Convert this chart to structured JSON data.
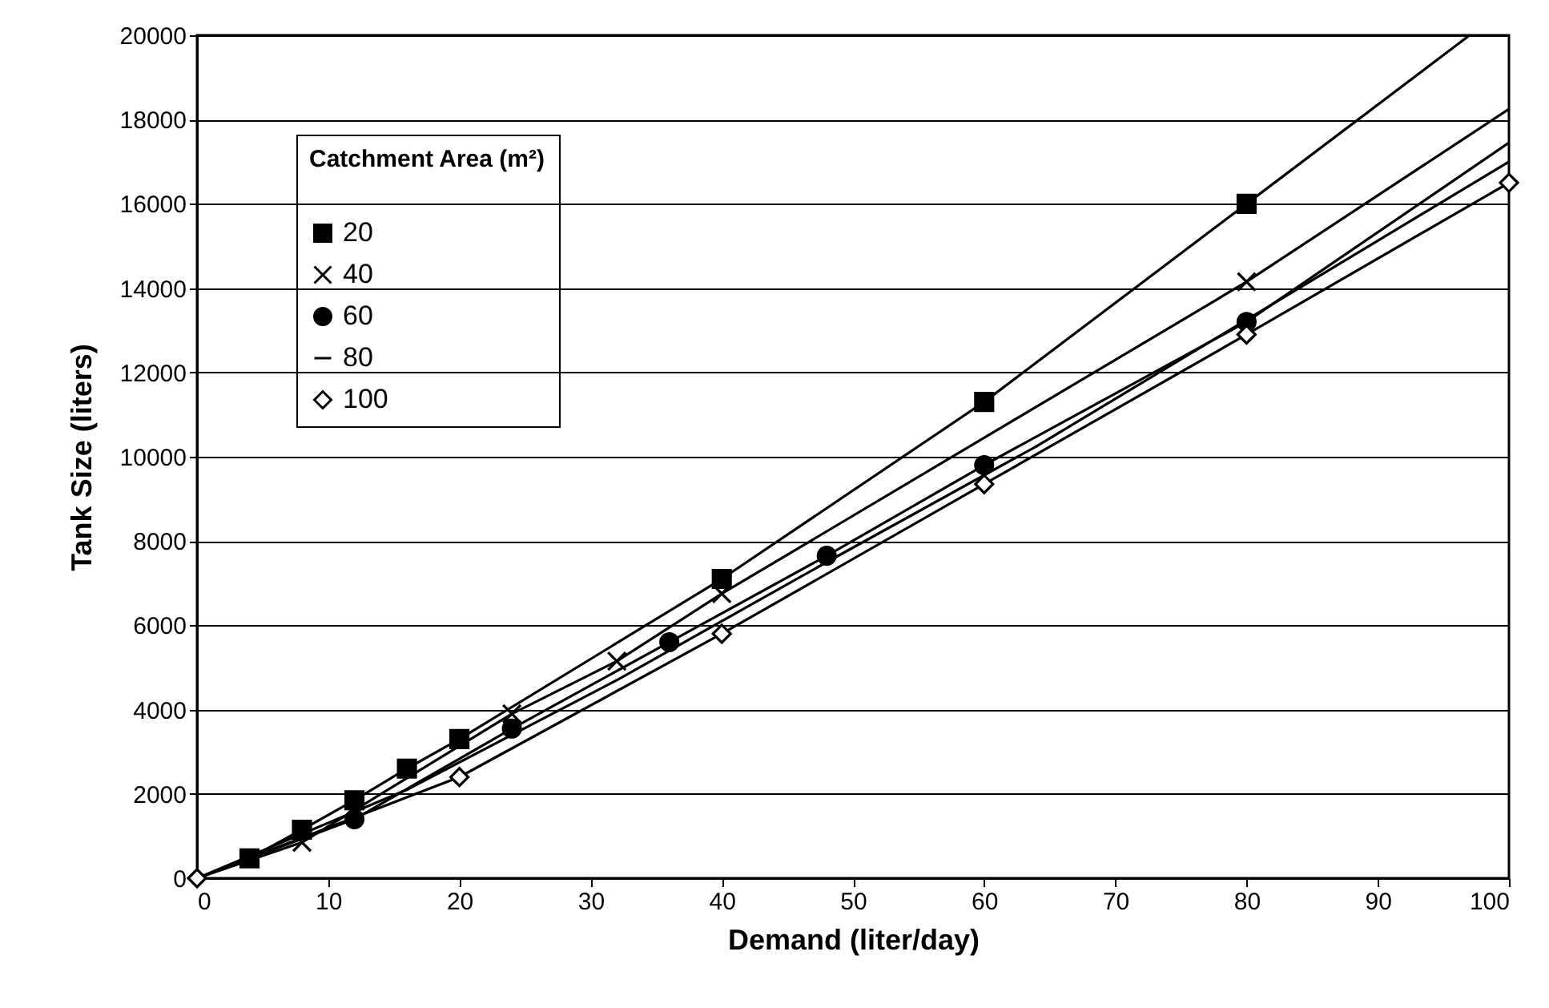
{
  "chart_data": {
    "type": "line",
    "xlabel": "Demand (liter/day)",
    "ylabel": "Tank Size (liters)",
    "legend_title": "Catchment Area (m²)",
    "xlim": [
      0,
      100
    ],
    "xticks": [
      0,
      10,
      20,
      30,
      40,
      50,
      60,
      70,
      80,
      90,
      100
    ],
    "ylim": [
      0,
      20000
    ],
    "yticks": [
      0,
      2000,
      4000,
      6000,
      8000,
      10000,
      12000,
      14000,
      16000,
      18000,
      20000
    ],
    "grid": "y",
    "legend": "top left",
    "series": [
      {
        "name": "20",
        "color": "#000000",
        "marker": "square",
        "x": [
          4,
          8,
          12,
          16,
          20,
          40,
          60,
          80
        ],
        "values": [
          470,
          1150,
          1850,
          2600,
          3300,
          7100,
          11300,
          16000
        ]
      },
      {
        "name": "40",
        "color": "#000000",
        "marker": "cross",
        "x": [
          8,
          24,
          32,
          40,
          80
        ],
        "values": [
          850,
          3900,
          5150,
          6750,
          14150
        ]
      },
      {
        "name": "60",
        "color": "#000000",
        "marker": "circle",
        "x": [
          12,
          24,
          36,
          48,
          60,
          80
        ],
        "values": [
          1400,
          3550,
          5600,
          7650,
          9800,
          13200
        ]
      },
      {
        "name": "80",
        "color": "#000000",
        "marker": "none",
        "x": [
          16,
          32,
          48,
          64
        ],
        "values": [
          2100,
          4700,
          7500,
          10250
        ]
      },
      {
        "name": "100",
        "color": "#000000",
        "marker": "diamond",
        "x": [
          0,
          20,
          40,
          60,
          80,
          100
        ],
        "values": [
          0,
          2400,
          5800,
          9350,
          12900,
          16500
        ]
      },
      {
        "type": "line",
        "color": "#000000",
        "marker": "none",
        "x": [
          0,
          8
        ],
        "values": [
          0,
          850
        ]
      },
      {
        "type": "line",
        "color": "#000000",
        "marker": "none",
        "x": [
          0,
          12
        ],
        "values": [
          0,
          1400
        ]
      },
      {
        "type": "line",
        "color": "#000000",
        "marker": "none",
        "x": [
          0,
          16
        ],
        "values": [
          0,
          2100
        ]
      },
      {
        "type": "line",
        "color": "#000000",
        "marker": "none",
        "x": [
          80,
          97
        ],
        "values": [
          16000,
          20000
        ]
      },
      {
        "type": "line",
        "color": "#000000",
        "marker": "none",
        "x": [
          80,
          100
        ],
        "values": [
          14150,
          18250
        ]
      },
      {
        "type": "line",
        "color": "#000000",
        "marker": "none",
        "x": [
          80,
          100
        ],
        "values": [
          13200,
          17450
        ]
      },
      {
        "type": "line",
        "color": "#000000",
        "marker": "none",
        "x": [
          64,
          100
        ],
        "values": [
          10250,
          17000
        ]
      }
    ]
  }
}
